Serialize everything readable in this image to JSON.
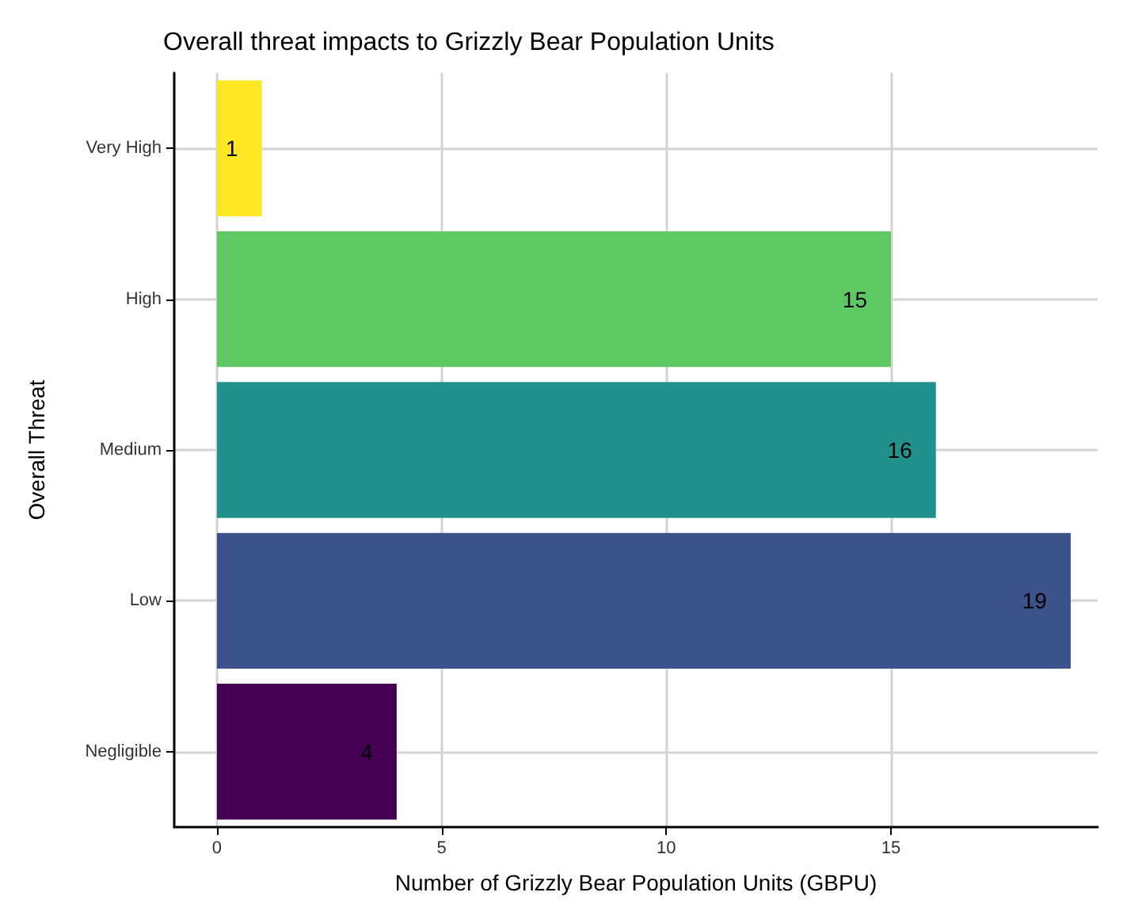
{
  "chart_data": {
    "type": "bar",
    "orientation": "horizontal",
    "title": "Overall threat impacts to Grizzly Bear Population Units",
    "xlabel": "Number of Grizzly Bear Population Units (GBPU)",
    "ylabel": "Overall Threat",
    "categories": [
      "Very High",
      "High",
      "Medium",
      "Low",
      "Negligible"
    ],
    "values": [
      1,
      15,
      16,
      19,
      4
    ],
    "colors": [
      "#fde725",
      "#5ec962",
      "#21918c",
      "#3b528b",
      "#440154"
    ],
    "xlim": [
      -0.95,
      19.6
    ],
    "xticks": [
      0,
      5,
      10,
      15
    ],
    "grid": true,
    "data_labels": true
  }
}
